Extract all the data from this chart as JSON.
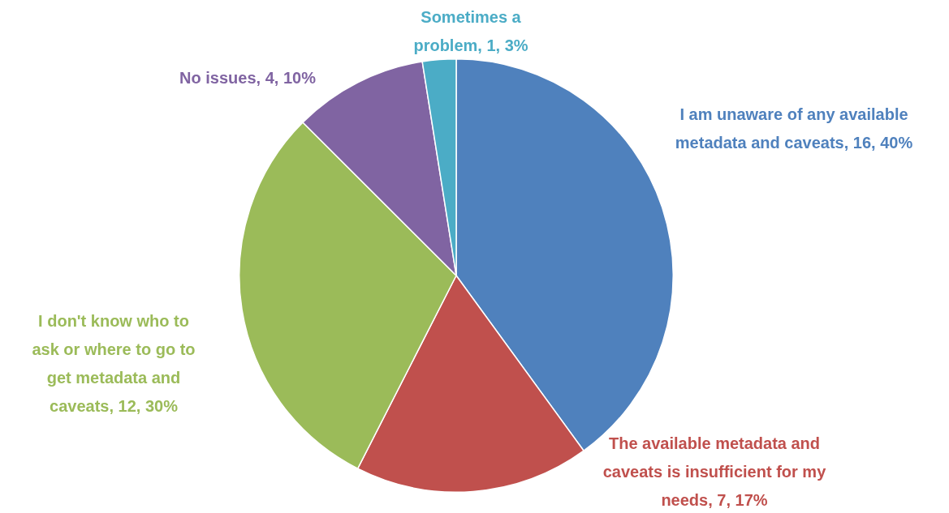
{
  "chart_data": {
    "type": "pie",
    "categories": [
      "I am unaware of any available metadata and caveats",
      "The available metadata and caveats is insufficient for my needs",
      "I don't know who to ask or where to go to get metadata and caveats",
      "No issues",
      "Sometimes a problem"
    ],
    "values": [
      16,
      7,
      12,
      4,
      1
    ],
    "value_labels": [
      "16, 40%",
      "7, 17%",
      "12, 30%",
      "4, 10%",
      "1, 3%"
    ],
    "colors": [
      "#4f81bd",
      "#c0504d",
      "#9bbb59",
      "#8064a2",
      "#4bacc6"
    ],
    "legend": false
  }
}
